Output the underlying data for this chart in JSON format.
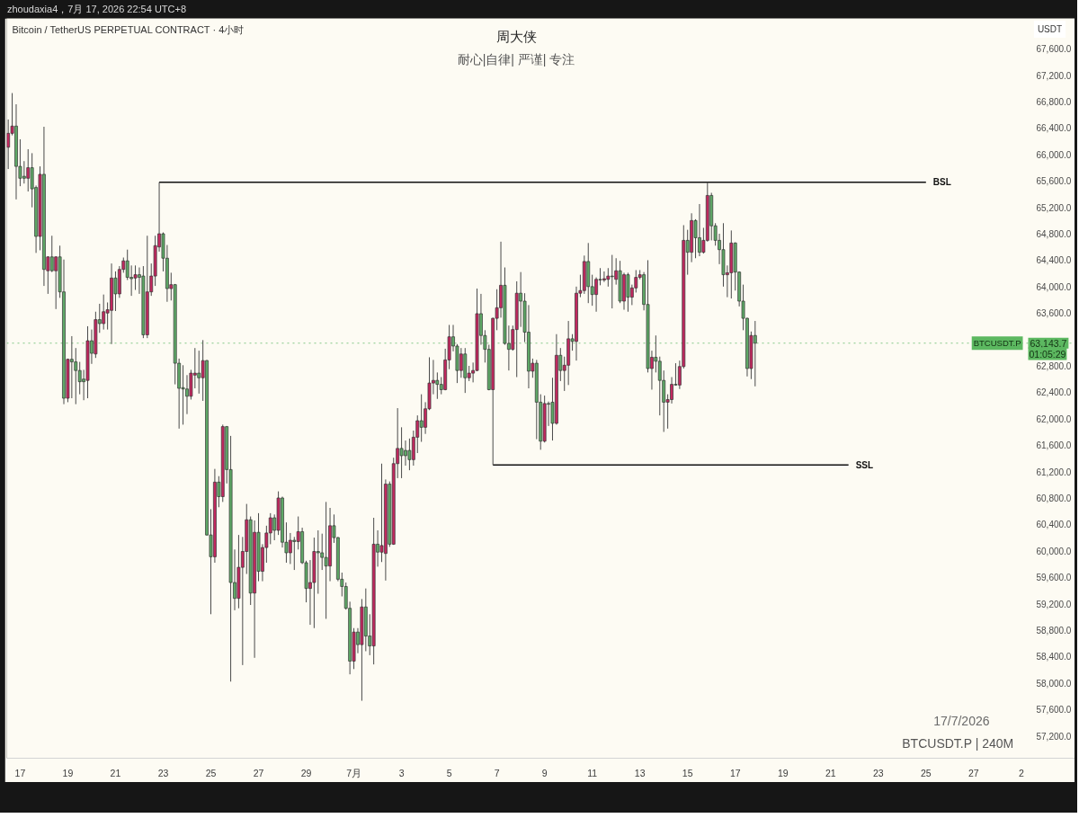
{
  "chart_data": {
    "type": "candlestick",
    "title": "周大侠",
    "subtitle": "耐心|自律| 严谨| 专注",
    "ylabel": "USDT",
    "annotations": [
      "zhoudaxia4，7月 17, 2026 22:54 UTC+8",
      "Bitcoin / TetherUS PERPETUAL CONTRACT · 4小时",
      "17/7/2026",
      "BTCUSDT.P | 240M",
      {
        "text": "BTCUSDT.P",
        "y": 63143.7
      },
      "01:05:29"
    ],
    "xlim": [
      "2026-06-16T10:30",
      "2026-07-31T06:00"
    ],
    "ylim": [
      56860,
      68060
    ],
    "xticks": [
      {
        "value": "2026-06-17",
        "label": "17"
      },
      {
        "value": "2026-06-19",
        "label": "19"
      },
      {
        "value": "2026-06-21",
        "label": "21"
      },
      {
        "value": "2026-06-23",
        "label": "23"
      },
      {
        "value": "2026-06-25",
        "label": "25"
      },
      {
        "value": "2026-06-27",
        "label": "27"
      },
      {
        "value": "2026-06-29",
        "label": "29"
      },
      {
        "value": "2026-07-01",
        "label": "7月"
      },
      {
        "value": "2026-07-03",
        "label": "3"
      },
      {
        "value": "2026-07-05",
        "label": "5"
      },
      {
        "value": "2026-07-07",
        "label": "7"
      },
      {
        "value": "2026-07-09",
        "label": "9"
      },
      {
        "value": "2026-07-11",
        "label": "11"
      },
      {
        "value": "2026-07-13",
        "label": "13"
      },
      {
        "value": "2026-07-15",
        "label": "15"
      },
      {
        "value": "2026-07-17",
        "label": "17"
      },
      {
        "value": "2026-07-19",
        "label": "19"
      },
      {
        "value": "2026-07-21",
        "label": "21"
      },
      {
        "value": "2026-07-23",
        "label": "23"
      },
      {
        "value": "2026-07-25",
        "label": "25"
      },
      {
        "value": "2026-07-27",
        "label": "27"
      },
      {
        "value": "2026-07-29",
        "label": "2"
      }
    ],
    "yticks": [
      {
        "value": 57200,
        "label": "57,200.0"
      },
      {
        "value": 57600,
        "label": "57,600.0"
      },
      {
        "value": 58000,
        "label": "58,000.0"
      },
      {
        "value": 58400,
        "label": "58,400.0"
      },
      {
        "value": 58800,
        "label": "58,800.0"
      },
      {
        "value": 59200,
        "label": "59,200.0"
      },
      {
        "value": 59600,
        "label": "59,600.0"
      },
      {
        "value": 60000,
        "label": "60,000.0"
      },
      {
        "value": 60400,
        "label": "60,400.0"
      },
      {
        "value": 60800,
        "label": "60,800.0"
      },
      {
        "value": 61200,
        "label": "61,200.0"
      },
      {
        "value": 61600,
        "label": "61,600.0"
      },
      {
        "value": 62000,
        "label": "62,000.0"
      },
      {
        "value": 62400,
        "label": "62,400.0"
      },
      {
        "value": 62800,
        "label": "62,800.0"
      },
      {
        "value": 63200,
        "label": null
      },
      {
        "value": 63600,
        "label": "63,600.0"
      },
      {
        "value": 64000,
        "label": "64,000.0"
      },
      {
        "value": 64400,
        "label": "64,400.0"
      },
      {
        "value": 64800,
        "label": "64,800.0"
      },
      {
        "value": 65200,
        "label": "65,200.0"
      },
      {
        "value": 65600,
        "label": "65,600.0"
      },
      {
        "value": 66000,
        "label": "66,000.0"
      },
      {
        "value": 66400,
        "label": "66,400.0"
      },
      {
        "value": 66800,
        "label": "66,800.0"
      },
      {
        "value": 67200,
        "label": "67,200.0"
      },
      {
        "value": 67600,
        "label": "67,600.0"
      }
    ],
    "grid": false,
    "ref_lines": [
      {
        "axis": "y",
        "value": 63143.7,
        "label": "63,143.7",
        "color": "#5cb860",
        "line_style": "dotted"
      }
    ],
    "series": [
      {
        "type": "line",
        "name": "BSL",
        "color": "#111111",
        "x": [
          "2026-06-22T20:00",
          "2026-07-25T00:00"
        ],
        "values": [
          65580,
          65580
        ]
      },
      {
        "type": "line",
        "name": "SSL",
        "color": "#111111",
        "x": [
          "2026-07-06T20:00",
          "2026-07-21T18:00"
        ],
        "values": [
          61300,
          61300
        ]
      },
      {
        "color": "#c2285f",
        "x": [
          "2026-06-16T12:00",
          "2026-06-16T16:00",
          "2026-06-17T08:00",
          "2026-06-17T20:00",
          "2026-06-18T04:00",
          "2026-06-18T12:00",
          "2026-06-19T00:00",
          "2026-06-19T20:00",
          "2026-06-20T04:00",
          "2026-06-20T12:00",
          "2026-06-20T16:00",
          "2026-06-20T20:00",
          "2026-06-21T04:00",
          "2026-06-21T08:00",
          "2026-06-21T20:00",
          "2026-06-22T08:00",
          "2026-06-22T12:00",
          "2026-06-22T16:00",
          "2026-06-22T20:00",
          "2026-06-23T08:00",
          "2026-06-24T04:00",
          "2026-06-24T08:00",
          "2026-06-24T16:00",
          "2026-06-25T04:00",
          "2026-06-25T12:00",
          "2026-06-26T04:00",
          "2026-06-26T08:00",
          "2026-06-26T12:00",
          "2026-06-26T20:00",
          "2026-06-27T04:00",
          "2026-06-27T08:00",
          "2026-06-27T12:00",
          "2026-06-27T20:00",
          "2026-06-28T08:00",
          "2026-06-28T16:00",
          "2026-06-29T04:00",
          "2026-06-29T08:00",
          "2026-06-30T00:00",
          "2026-07-01T00:00",
          "2026-07-01T08:00",
          "2026-07-01T20:00",
          "2026-07-02T04:00",
          "2026-07-02T08:00",
          "2026-07-02T16:00",
          "2026-07-02T20:00",
          "2026-07-03T12:00",
          "2026-07-03T16:00",
          "2026-07-04T00:00",
          "2026-07-04T04:00",
          "2026-07-04T08:00",
          "2026-07-04T20:00",
          "2026-07-05T00:00",
          "2026-07-05T12:00",
          "2026-07-05T20:00",
          "2026-07-06T00:00",
          "2026-07-06T04:00",
          "2026-07-06T20:00",
          "2026-07-07T00:00",
          "2026-07-07T04:00",
          "2026-07-07T16:00",
          "2026-07-07T20:00",
          "2026-07-08T12:00",
          "2026-07-09T00:00",
          "2026-07-09T12:00",
          "2026-07-09T20:00",
          "2026-07-10T00:00",
          "2026-07-10T08:00",
          "2026-07-10T12:00",
          "2026-07-10T16:00",
          "2026-07-11T04:00",
          "2026-07-11T12:00",
          "2026-07-11T16:00",
          "2026-07-12T00:00",
          "2026-07-12T08:00",
          "2026-07-12T16:00",
          "2026-07-12T20:00",
          "2026-07-13T00:00",
          "2026-07-13T12:00",
          "2026-07-14T04:00",
          "2026-07-14T08:00",
          "2026-07-14T16:00",
          "2026-07-14T20:00",
          "2026-07-15T04:00",
          "2026-07-15T16:00",
          "2026-07-15T20:00",
          "2026-07-16T16:00",
          "2026-07-16T20:00",
          "2026-07-17T16:00"
        ],
        "ohlc": [
          [
            66110,
            66530,
            65780,
            66320
          ],
          [
            66320,
            66930,
            66290,
            66430
          ],
          [
            65640,
            66080,
            65440,
            65800
          ],
          [
            64760,
            65820,
            64550,
            65700
          ],
          [
            64240,
            64460,
            63890,
            64450
          ],
          [
            64240,
            64460,
            63660,
            64450
          ],
          [
            62310,
            62910,
            62250,
            62900
          ],
          [
            62580,
            63400,
            62310,
            63180
          ],
          [
            62980,
            63620,
            62920,
            63500
          ],
          [
            63440,
            63880,
            63350,
            63620
          ],
          [
            63600,
            63760,
            63350,
            63650
          ],
          [
            63640,
            64350,
            63130,
            64130
          ],
          [
            63890,
            64310,
            63830,
            64260
          ],
          [
            64260,
            64440,
            64210,
            64390
          ],
          [
            64130,
            64320,
            63950,
            64180
          ],
          [
            63270,
            64770,
            63220,
            63920
          ],
          [
            63920,
            64350,
            63860,
            64160
          ],
          [
            64160,
            64770,
            64010,
            64620
          ],
          [
            64600,
            65580,
            64530,
            64800
          ],
          [
            63970,
            64210,
            63790,
            64030
          ],
          [
            62340,
            62740,
            62290,
            62690
          ],
          [
            62660,
            63070,
            62460,
            62690
          ],
          [
            62620,
            63190,
            62270,
            62880
          ],
          [
            59910,
            61240,
            59820,
            61040
          ],
          [
            60820,
            61910,
            60740,
            61880
          ],
          [
            59280,
            60240,
            59130,
            59750
          ],
          [
            59750,
            60210,
            58270,
            59990
          ],
          [
            59990,
            60710,
            59650,
            60470
          ],
          [
            59360,
            60460,
            58380,
            60280
          ],
          [
            59690,
            60100,
            59540,
            60050
          ],
          [
            60050,
            60380,
            59820,
            60270
          ],
          [
            60270,
            60570,
            60100,
            60500
          ],
          [
            60310,
            60900,
            60240,
            60800
          ],
          [
            59970,
            60270,
            59800,
            60160
          ],
          [
            60140,
            60520,
            60020,
            60290
          ],
          [
            59430,
            59860,
            58880,
            59520
          ],
          [
            59520,
            60200,
            58830,
            59990
          ],
          [
            59770,
            60650,
            59540,
            60380
          ],
          [
            58330,
            58830,
            58210,
            58770
          ],
          [
            58580,
            59270,
            57730,
            59150
          ],
          [
            58560,
            60500,
            58280,
            60100
          ],
          [
            59980,
            61320,
            59830,
            60080
          ],
          [
            59960,
            61080,
            59550,
            61010
          ],
          [
            60100,
            61410,
            60090,
            61320
          ],
          [
            61320,
            62160,
            61100,
            61550
          ],
          [
            61380,
            61820,
            61290,
            61720
          ],
          [
            61720,
            62050,
            61480,
            61970
          ],
          [
            61870,
            62250,
            61770,
            62150
          ],
          [
            62150,
            62930,
            62130,
            62540
          ],
          [
            62540,
            62890,
            62370,
            62580
          ],
          [
            62440,
            63060,
            62430,
            62890
          ],
          [
            62890,
            63420,
            62750,
            63240
          ],
          [
            62730,
            63070,
            62620,
            62980
          ],
          [
            62620,
            62800,
            62570,
            62690
          ],
          [
            62690,
            62850,
            62550,
            62730
          ],
          [
            62730,
            63970,
            62720,
            63590
          ],
          [
            62440,
            63530,
            61300,
            63520
          ],
          [
            63520,
            63960,
            63340,
            63680
          ],
          [
            63680,
            64680,
            63530,
            64020
          ],
          [
            63050,
            63410,
            63030,
            63350
          ],
          [
            63350,
            64080,
            62630,
            63900
          ],
          [
            62720,
            62910,
            62620,
            62840
          ],
          [
            61660,
            62350,
            61640,
            62230
          ],
          [
            61930,
            63280,
            61910,
            62960
          ],
          [
            62730,
            62940,
            62420,
            62810
          ],
          [
            62810,
            63480,
            62510,
            63210
          ],
          [
            63170,
            64000,
            62880,
            63900
          ],
          [
            63900,
            64180,
            63840,
            63940
          ],
          [
            63940,
            64470,
            63890,
            64380
          ],
          [
            63880,
            64140,
            63620,
            64110
          ],
          [
            64100,
            64230,
            64070,
            64120
          ],
          [
            64110,
            64280,
            64000,
            64160
          ],
          [
            64110,
            64430,
            64030,
            64240
          ],
          [
            63780,
            64210,
            63650,
            64180
          ],
          [
            63840,
            64030,
            63720,
            63980
          ],
          [
            63980,
            64250,
            63910,
            64140
          ],
          [
            64140,
            64250,
            64110,
            64180
          ],
          [
            62760,
            63030,
            62440,
            62930
          ],
          [
            62250,
            62370,
            61850,
            62290
          ],
          [
            62290,
            62630,
            62230,
            62520
          ],
          [
            62510,
            62880,
            62450,
            62790
          ],
          [
            62790,
            64930,
            62760,
            64700
          ],
          [
            64520,
            65110,
            64370,
            65000
          ],
          [
            64520,
            64890,
            64500,
            64700
          ],
          [
            64700,
            65580,
            64680,
            65380
          ],
          [
            64180,
            64320,
            63840,
            64210
          ],
          [
            64210,
            64850,
            63820,
            64660
          ],
          [
            62760,
            63320,
            62600,
            63260
          ]
        ]
      },
      {
        "color": "#5ea866",
        "x": [
          "2026-06-16T20:00",
          "2026-06-17T00:00",
          "2026-06-17T04:00",
          "2026-06-17T12:00",
          "2026-06-17T16:00",
          "2026-06-18T00:00",
          "2026-06-18T08:00",
          "2026-06-18T16:00",
          "2026-06-18T20:00",
          "2026-06-19T04:00",
          "2026-06-19T08:00",
          "2026-06-19T12:00",
          "2026-06-19T16:00",
          "2026-06-20T00:00",
          "2026-06-20T08:00",
          "2026-06-21T00:00",
          "2026-06-21T12:00",
          "2026-06-21T16:00",
          "2026-06-22T00:00",
          "2026-06-22T04:00",
          "2026-06-23T00:00",
          "2026-06-23T04:00",
          "2026-06-23T12:00",
          "2026-06-23T16:00",
          "2026-06-23T20:00",
          "2026-06-24T00:00",
          "2026-06-24T12:00",
          "2026-06-24T20:00",
          "2026-06-25T00:00",
          "2026-06-25T08:00",
          "2026-06-25T16:00",
          "2026-06-25T20:00",
          "2026-06-26T00:00",
          "2026-06-26T16:00",
          "2026-06-27T00:00",
          "2026-06-27T16:00",
          "2026-06-28T00:00",
          "2026-06-28T04:00",
          "2026-06-28T12:00",
          "2026-06-28T20:00",
          "2026-06-29T00:00",
          "2026-06-29T12:00",
          "2026-06-29T16:00",
          "2026-06-29T20:00",
          "2026-06-30T04:00",
          "2026-06-30T08:00",
          "2026-06-30T12:00",
          "2026-06-30T16:00",
          "2026-06-30T20:00",
          "2026-07-01T04:00",
          "2026-07-01T12:00",
          "2026-07-01T16:00",
          "2026-07-02T00:00",
          "2026-07-02T12:00",
          "2026-07-03T00:00",
          "2026-07-03T04:00",
          "2026-07-03T08:00",
          "2026-07-03T20:00",
          "2026-07-04T12:00",
          "2026-07-04T16:00",
          "2026-07-05T04:00",
          "2026-07-05T08:00",
          "2026-07-05T16:00",
          "2026-07-06T08:00",
          "2026-07-06T12:00",
          "2026-07-06T16:00",
          "2026-07-07T08:00",
          "2026-07-07T12:00",
          "2026-07-08T00:00",
          "2026-07-08T04:00",
          "2026-07-08T08:00",
          "2026-07-08T16:00",
          "2026-07-08T20:00",
          "2026-07-09T04:00",
          "2026-07-09T08:00",
          "2026-07-09T16:00",
          "2026-07-10T04:00",
          "2026-07-10T20:00",
          "2026-07-11T00:00",
          "2026-07-11T08:00",
          "2026-07-11T20:00",
          "2026-07-12T04:00",
          "2026-07-12T12:00",
          "2026-07-13T04:00",
          "2026-07-13T08:00",
          "2026-07-13T16:00",
          "2026-07-13T20:00",
          "2026-07-14T00:00",
          "2026-07-14T12:00",
          "2026-07-15T00:00",
          "2026-07-15T08:00",
          "2026-07-15T12:00",
          "2026-07-16T00:00",
          "2026-07-16T04:00",
          "2026-07-16T08:00",
          "2026-07-16T12:00",
          "2026-07-17T00:00",
          "2026-07-17T04:00",
          "2026-07-17T08:00",
          "2026-07-17T12:00",
          "2026-07-17T20:00"
        ],
        "ohlc": [
          [
            66430,
            66760,
            65320,
            65820
          ],
          [
            65820,
            66230,
            65520,
            65640
          ],
          [
            65670,
            65900,
            65560,
            65640
          ],
          [
            65800,
            66020,
            65200,
            65480
          ],
          [
            65500,
            65530,
            64510,
            64760
          ],
          [
            65700,
            66420,
            64010,
            64260
          ],
          [
            64450,
            64770,
            64220,
            64240
          ],
          [
            64450,
            64620,
            63830,
            63920
          ],
          [
            63920,
            64410,
            62220,
            62310
          ],
          [
            62900,
            63250,
            62310,
            62860
          ],
          [
            62860,
            63070,
            62220,
            62730
          ],
          [
            62730,
            62860,
            62370,
            62560
          ],
          [
            62600,
            62740,
            62280,
            62560
          ],
          [
            63180,
            63350,
            62830,
            62990
          ],
          [
            63500,
            63740,
            63300,
            63440
          ],
          [
            64130,
            64230,
            63630,
            63890
          ],
          [
            64390,
            64560,
            64100,
            64140
          ],
          [
            64140,
            64320,
            63860,
            64120
          ],
          [
            64180,
            64290,
            63890,
            64140
          ],
          [
            64160,
            64310,
            63220,
            63270
          ],
          [
            64800,
            64820,
            64230,
            64430
          ],
          [
            64430,
            64630,
            63770,
            63970
          ],
          [
            64030,
            64040,
            62520,
            62840
          ],
          [
            62840,
            62910,
            61850,
            62460
          ],
          [
            62470,
            62810,
            61910,
            62450
          ],
          [
            62450,
            62660,
            62070,
            62340
          ],
          [
            62690,
            63030,
            62380,
            62620
          ],
          [
            62880,
            62890,
            60230,
            60240
          ],
          [
            60240,
            60630,
            59040,
            59910
          ],
          [
            61040,
            61130,
            60660,
            60820
          ],
          [
            61880,
            61890,
            61020,
            61230
          ],
          [
            61230,
            61740,
            58020,
            59520
          ],
          [
            59520,
            60020,
            59100,
            59280
          ],
          [
            60470,
            60520,
            59180,
            59360
          ],
          [
            60280,
            60570,
            59540,
            59690
          ],
          [
            60500,
            60550,
            60160,
            60310
          ],
          [
            60800,
            60820,
            60050,
            60130
          ],
          [
            60130,
            60430,
            59820,
            59970
          ],
          [
            60160,
            60210,
            59710,
            60140
          ],
          [
            60290,
            60350,
            59800,
            59820
          ],
          [
            59820,
            59850,
            59220,
            59430
          ],
          [
            59990,
            60310,
            59350,
            59970
          ],
          [
            59970,
            60260,
            59710,
            59900
          ],
          [
            59900,
            60740,
            58970,
            59770
          ],
          [
            60380,
            60550,
            60120,
            60200
          ],
          [
            60200,
            60210,
            59540,
            59570
          ],
          [
            59570,
            59670,
            59310,
            59460
          ],
          [
            59460,
            59520,
            59110,
            59130
          ],
          [
            59130,
            59230,
            58130,
            58330
          ],
          [
            58770,
            58830,
            58450,
            58580
          ],
          [
            59150,
            59430,
            58480,
            58710
          ],
          [
            58710,
            59040,
            58420,
            58560
          ],
          [
            60100,
            60310,
            59760,
            59980
          ],
          [
            61010,
            61050,
            60060,
            60100
          ],
          [
            61550,
            61870,
            61100,
            61440
          ],
          [
            61520,
            61670,
            61290,
            61440
          ],
          [
            61520,
            61700,
            61220,
            61380
          ],
          [
            61970,
            62370,
            61650,
            61870
          ],
          [
            62580,
            62700,
            62300,
            62520
          ],
          [
            62520,
            62630,
            62370,
            62440
          ],
          [
            63240,
            63420,
            63020,
            63100
          ],
          [
            63100,
            63130,
            62540,
            62730
          ],
          [
            62980,
            63070,
            62390,
            62620
          ],
          [
            63590,
            63890,
            63120,
            63260
          ],
          [
            63260,
            63340,
            62850,
            63050
          ],
          [
            63050,
            63120,
            62430,
            62440
          ],
          [
            64020,
            64290,
            63120,
            63140
          ],
          [
            63140,
            63410,
            62730,
            63050
          ],
          [
            63900,
            64220,
            63390,
            63780
          ],
          [
            63780,
            63900,
            63160,
            63310
          ],
          [
            63310,
            63720,
            62460,
            62720
          ],
          [
            62840,
            62890,
            61690,
            62250
          ],
          [
            62250,
            62370,
            61530,
            61660
          ],
          [
            62230,
            62260,
            61890,
            62220
          ],
          [
            62250,
            62620,
            61670,
            61930
          ],
          [
            62960,
            63070,
            62570,
            62730
          ],
          [
            63210,
            63280,
            63030,
            63170
          ],
          [
            64380,
            64660,
            63750,
            64000
          ],
          [
            64000,
            64180,
            63710,
            63880
          ],
          [
            64110,
            64280,
            64020,
            64100
          ],
          [
            64160,
            64480,
            63670,
            64150
          ],
          [
            64240,
            64390,
            63750,
            63780
          ],
          [
            64180,
            64210,
            63620,
            63840
          ],
          [
            64180,
            64220,
            63640,
            63730
          ],
          [
            63730,
            64400,
            62700,
            62760
          ],
          [
            62930,
            63260,
            62700,
            62870
          ],
          [
            62870,
            62940,
            62050,
            62580
          ],
          [
            62580,
            62730,
            61800,
            62250
          ],
          [
            62520,
            62840,
            62500,
            62510
          ],
          [
            64700,
            64860,
            64180,
            64520
          ],
          [
            65000,
            65020,
            64430,
            64740
          ],
          [
            64740,
            65250,
            64460,
            64520
          ],
          [
            65380,
            65420,
            64700,
            64920
          ],
          [
            64920,
            64960,
            64620,
            64700
          ],
          [
            64700,
            64800,
            64340,
            64560
          ],
          [
            64560,
            64960,
            64000,
            64180
          ],
          [
            64660,
            64670,
            63940,
            64220
          ],
          [
            64220,
            64230,
            63700,
            63780
          ],
          [
            63780,
            64030,
            63340,
            63520
          ],
          [
            63520,
            63530,
            62640,
            62760
          ],
          [
            63260,
            63480,
            62490,
            63143.7
          ]
        ]
      }
    ]
  }
}
